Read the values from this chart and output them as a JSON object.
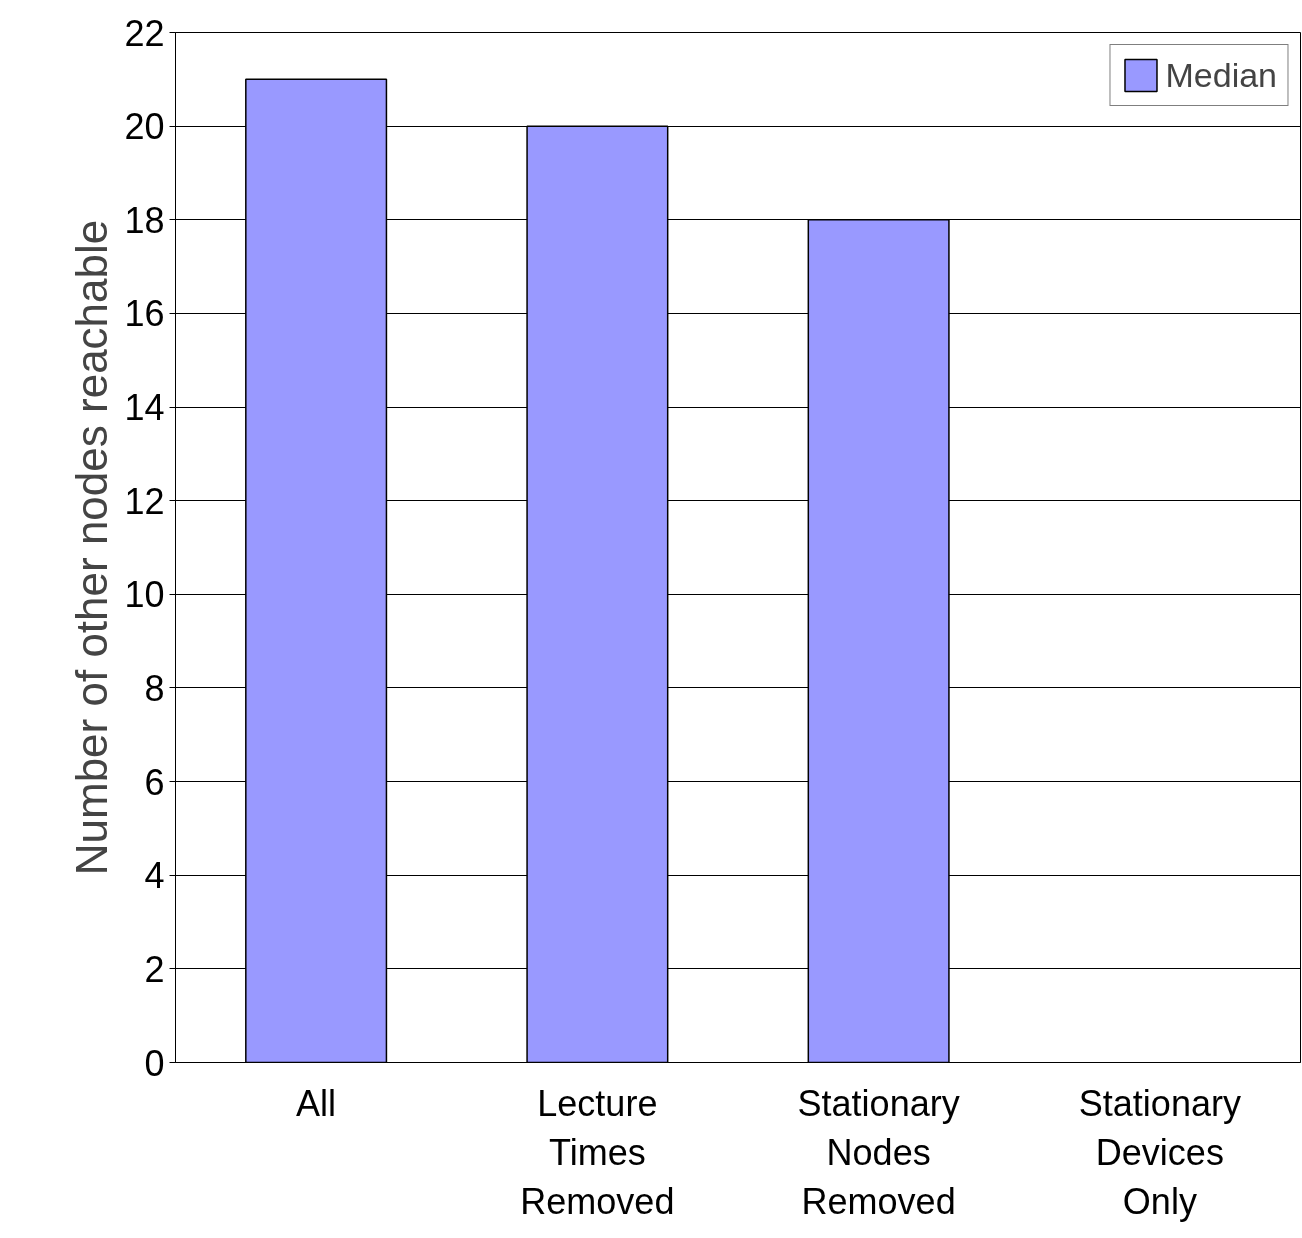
{
  "chart_data": {
    "type": "bar",
    "ylabel": "Number of other nodes reachable",
    "categories": [
      "All",
      "Lecture Times Removed",
      "Stationary Nodes Removed",
      "Stationary Devices Only"
    ],
    "series": [
      {
        "name": "Median",
        "color": "#9999ff",
        "values": [
          21,
          20,
          18,
          0
        ]
      }
    ],
    "ylim": [
      0,
      22
    ],
    "yticks": [
      0,
      2,
      4,
      6,
      8,
      10,
      12,
      14,
      16,
      18,
      20,
      22
    ],
    "grid": "y",
    "legend": "top right"
  }
}
